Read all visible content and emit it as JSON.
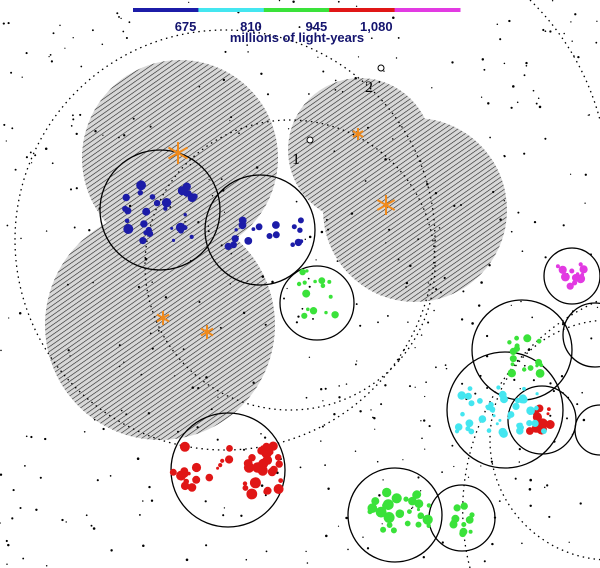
{
  "colorbar": {
    "label": "millions of light-years",
    "lim": [
      540,
      1215
    ],
    "colors": [
      "#1c1ca8",
      "#44e6f0",
      "#3ae23a",
      "#e01616",
      "#e23ae2"
    ],
    "ticks": [
      675,
      810,
      945,
      {
        "value": 1080,
        "label": "1,080"
      }
    ]
  },
  "markers": [
    "1",
    "2"
  ]
}
